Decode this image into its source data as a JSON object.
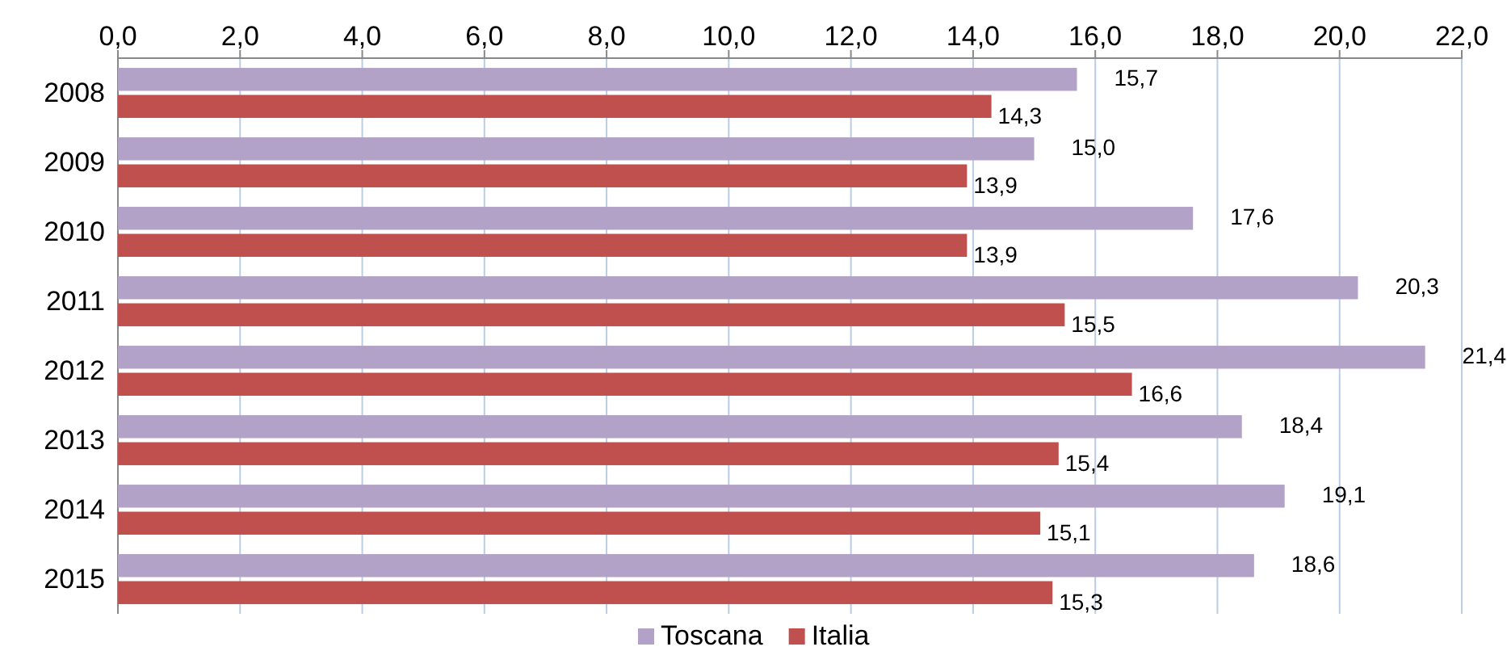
{
  "chart_data": {
    "type": "bar",
    "orientation": "horizontal",
    "categories": [
      "2008",
      "2009",
      "2010",
      "2011",
      "2012",
      "2013",
      "2014",
      "2015"
    ],
    "series": [
      {
        "name": "Toscana",
        "color": "#b3a2c7",
        "values": [
          15.7,
          15.0,
          17.6,
          20.3,
          21.4,
          18.4,
          19.1,
          18.6
        ],
        "value_labels": [
          "15,7",
          "15,0",
          "17,6",
          "20,3",
          "21,4",
          "18,4",
          "19,1",
          "18,6"
        ]
      },
      {
        "name": "Italia",
        "color": "#c0504d",
        "values": [
          14.3,
          13.9,
          13.9,
          15.5,
          16.6,
          15.4,
          15.1,
          15.3
        ],
        "value_labels": [
          "14,3",
          "13,9",
          "13,9",
          "15,5",
          "16,6",
          "15,4",
          "15,1",
          "15,3"
        ]
      }
    ],
    "xlim": [
      0,
      22
    ],
    "xticks": [
      {
        "value": 0,
        "label": "0,0"
      },
      {
        "value": 2,
        "label": "2,0"
      },
      {
        "value": 4,
        "label": "4,0"
      },
      {
        "value": 6,
        "label": "6,0"
      },
      {
        "value": 8,
        "label": "8,0"
      },
      {
        "value": 10,
        "label": "10,0"
      },
      {
        "value": 12,
        "label": "12,0"
      },
      {
        "value": 14,
        "label": "14,0"
      },
      {
        "value": 16,
        "label": "16,0"
      },
      {
        "value": 18,
        "label": "18,0"
      },
      {
        "value": 20,
        "label": "20,0"
      },
      {
        "value": 22,
        "label": "22,0"
      }
    ],
    "grid": "x",
    "legend": "bottom"
  }
}
